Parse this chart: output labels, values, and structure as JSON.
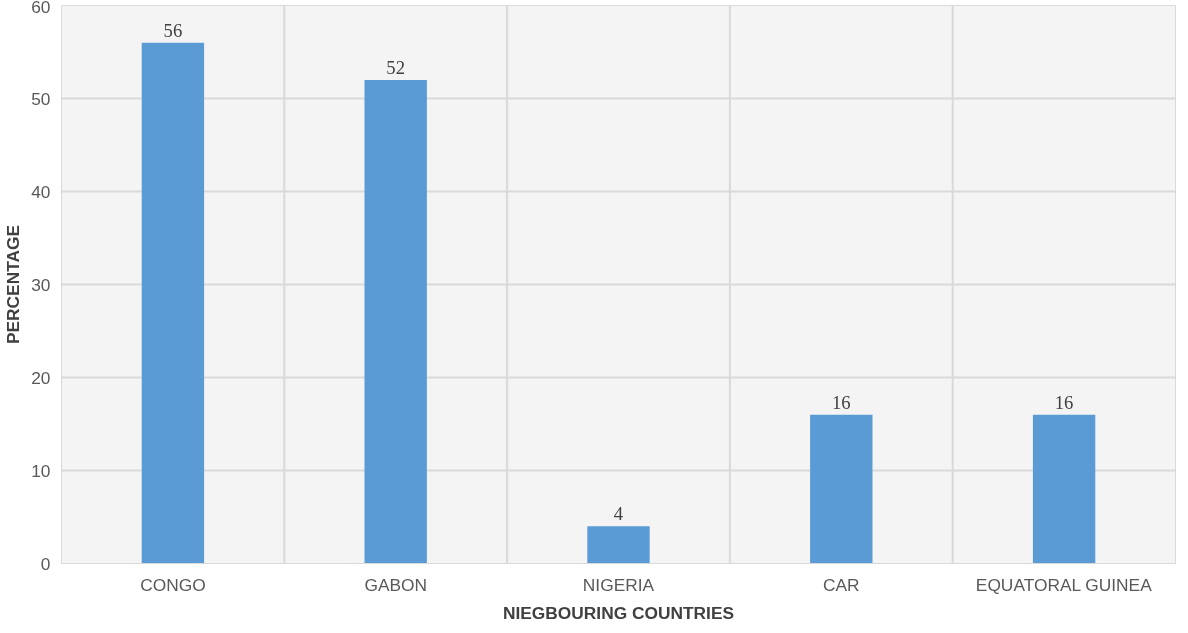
{
  "chart_data": {
    "type": "bar",
    "xlabel": "NIEGBOURING COUNTRIES",
    "ylabel": "PERCENTAGE",
    "categories": [
      "CONGO",
      "GABON",
      "NIGERIA",
      "CAR",
      "EQUATORAL GUINEA"
    ],
    "values": [
      56,
      52,
      4,
      16,
      16
    ],
    "color": "#5b9bd5",
    "ylim": [
      0,
      60
    ],
    "yticks": [
      0,
      10,
      20,
      30,
      40,
      50,
      60
    ],
    "grid": true,
    "data_labels": true
  }
}
